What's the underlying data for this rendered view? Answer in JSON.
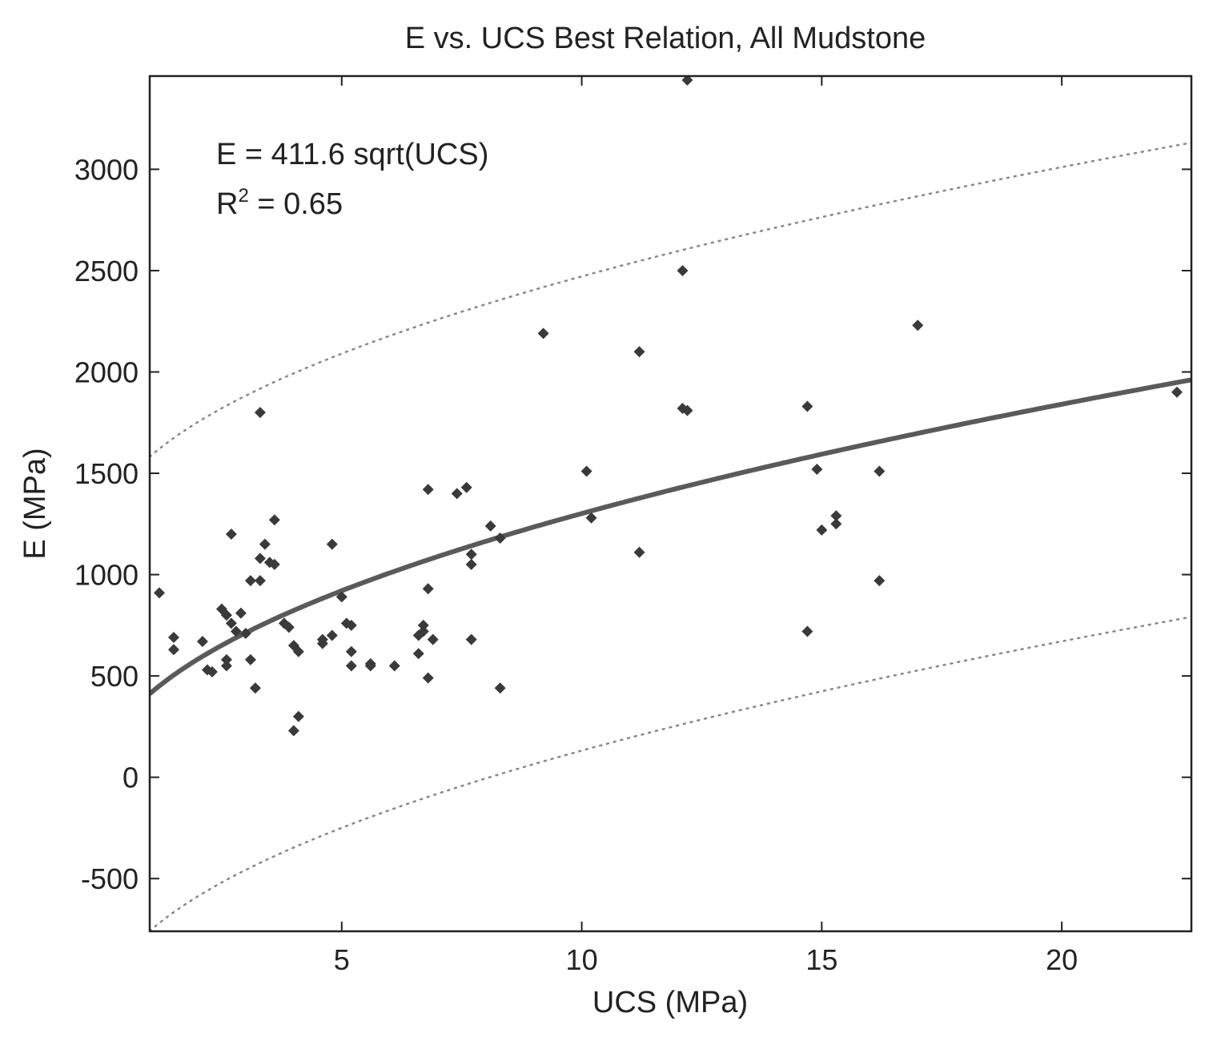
{
  "chart_data": {
    "type": "scatter",
    "title": "E vs. UCS Best Relation, All Mudstone",
    "xlabel": "UCS (MPa)",
    "ylabel": "E (MPa)",
    "xlim": [
      1.0,
      22.7
    ],
    "ylim": [
      -760,
      3460
    ],
    "xticks": [
      5,
      10,
      15,
      20
    ],
    "yticks": [
      -500,
      0,
      500,
      1000,
      1500,
      2000,
      2500,
      3000
    ],
    "annotation": {
      "line1": "E = 411.6 sqrt(UCS)",
      "r_prefix": "R",
      "r_exp": "2",
      "r_suffix": " = 0.65"
    },
    "fit": {
      "coef": 411.6,
      "form": "sqrt",
      "band": 1170
    },
    "colors": {
      "points": "#3a3a3a",
      "fit": "#5a5a5a",
      "bounds": "#888888",
      "axes": "#222222"
    },
    "points": [
      [
        1.2,
        910
      ],
      [
        1.5,
        690
      ],
      [
        1.5,
        630
      ],
      [
        2.1,
        670
      ],
      [
        2.2,
        530
      ],
      [
        2.3,
        520
      ],
      [
        2.5,
        830
      ],
      [
        2.6,
        800
      ],
      [
        2.6,
        580
      ],
      [
        2.6,
        550
      ],
      [
        2.7,
        1200
      ],
      [
        2.7,
        760
      ],
      [
        2.8,
        720
      ],
      [
        2.9,
        810
      ],
      [
        3.0,
        710
      ],
      [
        3.1,
        580
      ],
      [
        3.1,
        970
      ],
      [
        3.3,
        970
      ],
      [
        3.2,
        440
      ],
      [
        3.3,
        1800
      ],
      [
        3.3,
        1080
      ],
      [
        3.4,
        1150
      ],
      [
        3.5,
        1060
      ],
      [
        3.6,
        1270
      ],
      [
        3.6,
        1050
      ],
      [
        3.8,
        760
      ],
      [
        3.9,
        740
      ],
      [
        4.0,
        650
      ],
      [
        4.1,
        620
      ],
      [
        4.1,
        300
      ],
      [
        4.0,
        230
      ],
      [
        4.6,
        660
      ],
      [
        4.6,
        680
      ],
      [
        4.8,
        700
      ],
      [
        4.8,
        1150
      ],
      [
        5.0,
        890
      ],
      [
        5.1,
        760
      ],
      [
        5.2,
        750
      ],
      [
        5.2,
        620
      ],
      [
        5.2,
        550
      ],
      [
        5.6,
        560
      ],
      [
        5.6,
        550
      ],
      [
        6.1,
        550
      ],
      [
        6.6,
        700
      ],
      [
        6.6,
        610
      ],
      [
        6.7,
        750
      ],
      [
        6.7,
        720
      ],
      [
        6.8,
        1420
      ],
      [
        6.8,
        490
      ],
      [
        6.8,
        930
      ],
      [
        6.9,
        680
      ],
      [
        7.4,
        1400
      ],
      [
        7.6,
        1430
      ],
      [
        7.7,
        1100
      ],
      [
        7.7,
        1050
      ],
      [
        7.7,
        680
      ],
      [
        8.1,
        1240
      ],
      [
        8.3,
        1180
      ],
      [
        8.3,
        440
      ],
      [
        9.2,
        2190
      ],
      [
        10.1,
        1510
      ],
      [
        10.2,
        1280
      ],
      [
        11.2,
        2100
      ],
      [
        11.2,
        1110
      ],
      [
        12.1,
        2500
      ],
      [
        12.1,
        1820
      ],
      [
        12.2,
        1810
      ],
      [
        12.2,
        3440
      ],
      [
        14.7,
        1830
      ],
      [
        14.7,
        720
      ],
      [
        14.9,
        1520
      ],
      [
        15.0,
        1220
      ],
      [
        15.3,
        1290
      ],
      [
        15.3,
        1250
      ],
      [
        16.2,
        1510
      ],
      [
        16.2,
        970
      ],
      [
        17.0,
        2230
      ],
      [
        22.4,
        1900
      ]
    ]
  }
}
